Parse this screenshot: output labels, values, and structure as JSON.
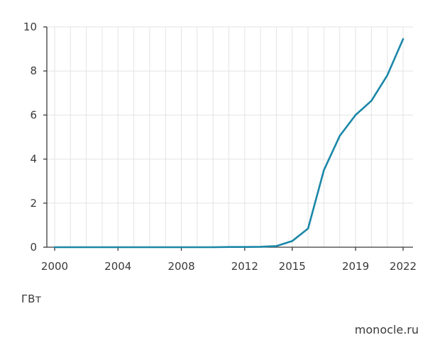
{
  "chart_data": {
    "type": "line",
    "title": "",
    "xlabel": "",
    "ylabel": "",
    "unit": "ГВт",
    "x_ticks": [
      "2000",
      "2004",
      "2008",
      "2012",
      "2015",
      "2019",
      "2022"
    ],
    "y_ticks": [
      "0",
      "2",
      "4",
      "6",
      "8",
      "10"
    ],
    "xlim": [
      2000,
      2022
    ],
    "ylim": [
      0,
      10
    ],
    "grid": true,
    "series": [
      {
        "x": [
          2000,
          2001,
          2002,
          2003,
          2004,
          2005,
          2006,
          2007,
          2008,
          2009,
          2010,
          2011,
          2012,
          2013,
          2014,
          2015,
          2016,
          2017,
          2018,
          2019,
          2020,
          2021,
          2022
        ],
        "values": [
          0,
          0,
          0,
          0,
          0,
          0,
          0,
          0,
          0,
          0,
          0,
          0.01,
          0.01,
          0.02,
          0.05,
          0.28,
          0.85,
          3.5,
          5.05,
          6.0,
          6.65,
          7.8,
          9.45
        ],
        "color": "#1a87a8"
      }
    ]
  },
  "source": "monocle.ru",
  "colors": {
    "line": "#1a87a8",
    "grid": "#e3e3e3",
    "axis": "#3a3a3a"
  }
}
